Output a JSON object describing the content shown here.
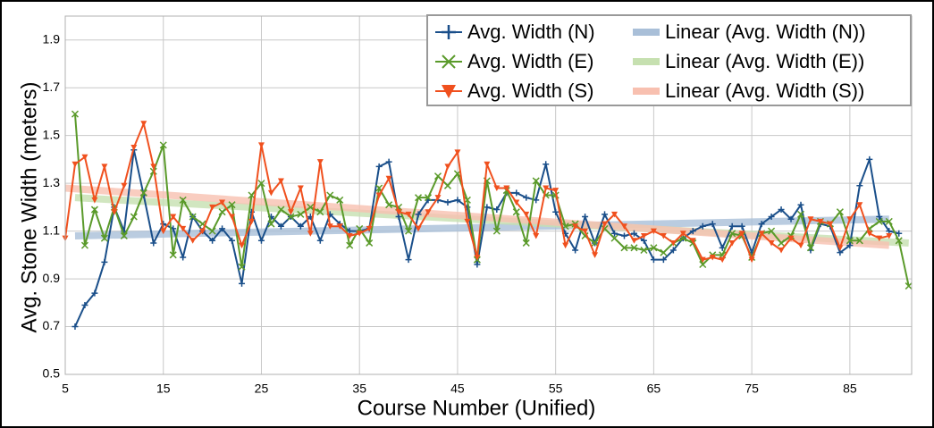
{
  "chart_data": {
    "type": "line",
    "x_label": "Course Number (Unified)",
    "y_label": "Avg. Stone Width (meters)",
    "x": [
      5,
      6,
      7,
      8,
      9,
      10,
      11,
      12,
      13,
      14,
      15,
      16,
      17,
      18,
      19,
      20,
      21,
      22,
      23,
      24,
      25,
      26,
      27,
      28,
      29,
      30,
      31,
      32,
      33,
      34,
      35,
      36,
      37,
      38,
      39,
      40,
      41,
      42,
      43,
      44,
      45,
      46,
      47,
      48,
      49,
      50,
      51,
      52,
      53,
      54,
      55,
      56,
      57,
      58,
      59,
      60,
      61,
      62,
      63,
      64,
      65,
      66,
      67,
      68,
      69,
      70,
      71,
      72,
      73,
      74,
      75,
      76,
      77,
      78,
      79,
      80,
      81,
      82,
      83,
      84,
      85,
      86,
      87,
      88,
      89,
      90,
      91
    ],
    "xlim": [
      5,
      91.3
    ],
    "xticks": [
      5,
      15,
      25,
      35,
      45,
      55,
      65,
      75,
      85
    ],
    "ylim": [
      0.5,
      2.0
    ],
    "yticks": [
      0.5,
      0.7,
      0.9,
      1.1,
      1.3,
      1.5,
      1.7,
      1.9
    ],
    "grid": true,
    "legend": "top-right",
    "series": [
      {
        "name": "Avg. Width (N)",
        "color": "#1a4f8a",
        "marker": "plus",
        "values": [
          null,
          0.7,
          0.79,
          0.84,
          0.97,
          1.2,
          1.1,
          1.44,
          1.25,
          1.05,
          1.13,
          1.11,
          0.99,
          1.16,
          1.1,
          1.06,
          1.11,
          1.06,
          0.88,
          1.18,
          1.06,
          1.16,
          1.12,
          1.16,
          1.12,
          1.16,
          1.06,
          1.17,
          1.13,
          1.1,
          1.1,
          1.11,
          1.37,
          1.39,
          1.16,
          0.98,
          1.17,
          1.23,
          1.23,
          1.22,
          1.23,
          1.2,
          0.96,
          1.2,
          1.19,
          1.26,
          1.26,
          1.24,
          1.23,
          1.38,
          1.18,
          1.09,
          1.02,
          1.16,
          1.05,
          1.17,
          1.09,
          1.08,
          1.09,
          1.06,
          0.98,
          0.98,
          1.02,
          1.07,
          1.1,
          1.12,
          1.13,
          1.03,
          1.12,
          1.12,
          1.01,
          1.13,
          1.16,
          1.19,
          1.15,
          1.21,
          1.02,
          1.13,
          1.12,
          1.01,
          1.04,
          1.29,
          1.4,
          1.16,
          1.1,
          1.09,
          null
        ]
      },
      {
        "name": "Avg. Width (E)",
        "color": "#5a9a2a",
        "marker": "cross",
        "values": [
          null,
          1.59,
          1.04,
          1.19,
          1.07,
          1.2,
          1.08,
          1.16,
          1.26,
          1.35,
          1.46,
          1.0,
          1.23,
          1.16,
          1.13,
          1.1,
          1.18,
          1.21,
          0.95,
          1.25,
          1.3,
          1.13,
          1.19,
          1.16,
          1.17,
          1.2,
          1.18,
          1.25,
          1.23,
          1.04,
          1.11,
          1.05,
          1.28,
          1.21,
          1.2,
          1.1,
          1.24,
          1.24,
          1.33,
          1.29,
          1.34,
          1.23,
          0.98,
          1.31,
          1.1,
          1.27,
          1.18,
          1.05,
          1.31,
          1.25,
          1.25,
          1.12,
          1.13,
          1.08,
          1.05,
          1.11,
          1.07,
          1.03,
          1.03,
          1.02,
          1.03,
          1.01,
          1.05,
          1.07,
          1.05,
          0.96,
          1.0,
          1.0,
          1.09,
          1.08,
          0.99,
          1.09,
          1.1,
          1.05,
          1.08,
          1.17,
          1.03,
          1.14,
          1.13,
          1.18,
          1.06,
          1.06,
          1.11,
          1.14,
          1.14,
          1.06,
          0.87
        ]
      },
      {
        "name": "Avg. Width (S)",
        "color": "#f0501e",
        "marker": "triangle",
        "values": [
          1.07,
          1.38,
          1.41,
          1.23,
          1.37,
          1.18,
          1.29,
          1.45,
          1.55,
          1.37,
          1.1,
          1.16,
          1.11,
          1.06,
          1.1,
          1.2,
          1.22,
          1.16,
          1.04,
          1.14,
          1.46,
          1.26,
          1.31,
          1.18,
          1.28,
          1.09,
          1.39,
          1.12,
          1.12,
          1.08,
          1.09,
          1.11,
          1.25,
          1.32,
          1.18,
          1.17,
          1.11,
          1.18,
          1.24,
          1.37,
          1.43,
          1.14,
          0.99,
          1.38,
          1.28,
          1.28,
          1.22,
          1.17,
          1.08,
          1.28,
          1.27,
          1.04,
          1.12,
          1.1,
          1.0,
          1.13,
          1.17,
          1.12,
          1.06,
          1.08,
          1.1,
          1.08,
          1.05,
          1.09,
          1.06,
          0.98,
          0.99,
          0.98,
          1.05,
          1.09,
          0.98,
          1.09,
          1.05,
          1.02,
          1.07,
          1.04,
          1.15,
          1.14,
          1.13,
          1.03,
          1.15,
          1.21,
          1.09,
          1.07,
          1.08,
          null,
          null
        ]
      },
      {
        "name": "Linear (Avg. Width (N))",
        "color": "#a9bfd8",
        "trend": true,
        "x": [
          6,
          89
        ],
        "values": [
          1.08,
          1.15
        ]
      },
      {
        "name": "Linear (Avg. Width (E))",
        "color": "#c6e0b0",
        "trend": true,
        "x": [
          6,
          91
        ],
        "values": [
          1.24,
          1.05
        ]
      },
      {
        "name": "Linear (Avg. Width (S))",
        "color": "#f8c0b0",
        "trend": true,
        "x": [
          5,
          89
        ],
        "values": [
          1.28,
          1.04
        ]
      }
    ]
  }
}
